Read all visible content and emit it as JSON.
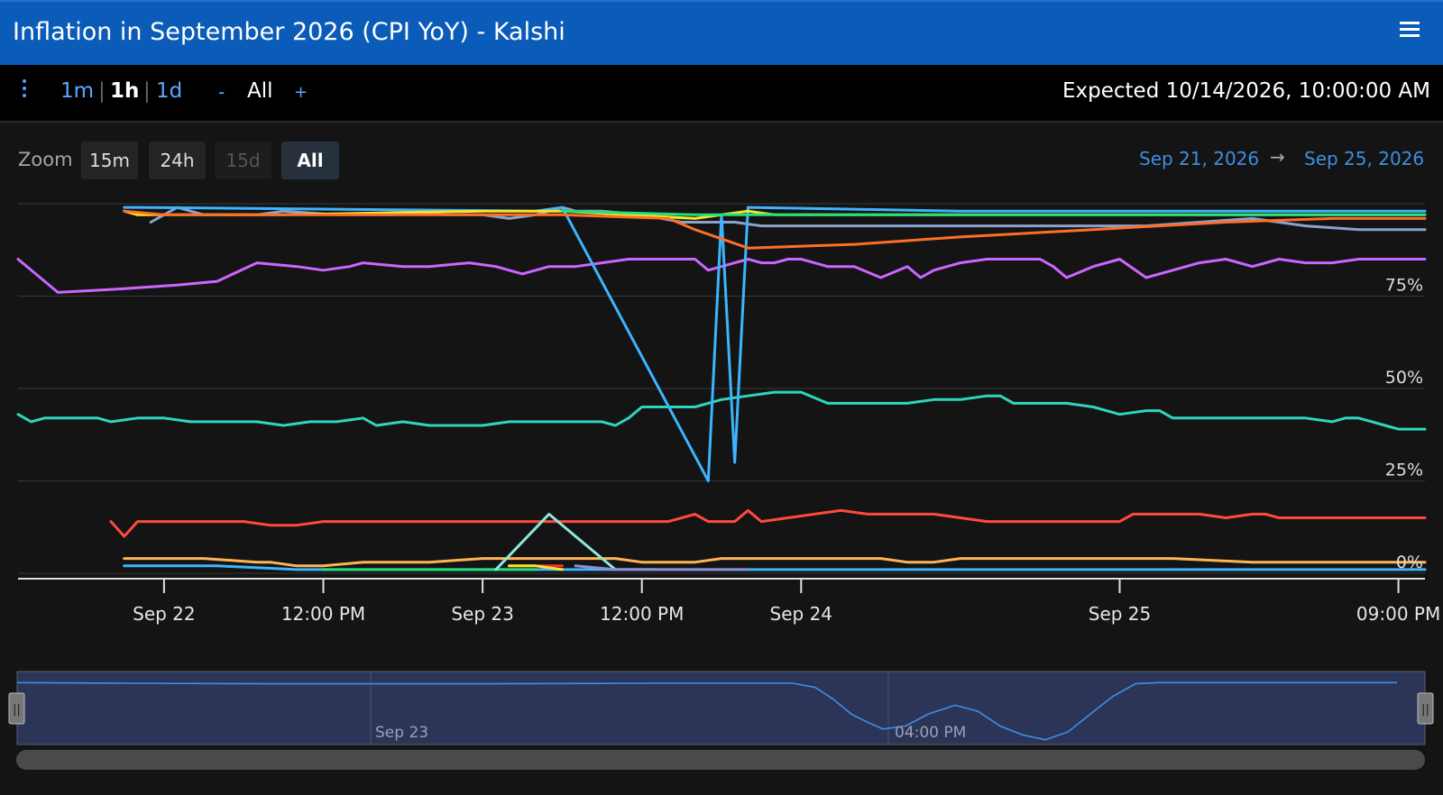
{
  "window": {
    "title": "Inflation in September 2026 (CPI YoY) - Kalshi"
  },
  "toolbar": {
    "resolutions": [
      "1m",
      "1h",
      "1d"
    ],
    "selected_resolution": "1h",
    "separator": "|",
    "zoom_out": "-",
    "range_label": "All",
    "zoom_in": "+",
    "expected": "Expected 10/14/2026, 10:00:00 AM"
  },
  "zoom": {
    "label": "Zoom",
    "buttons": [
      "15m",
      "24h",
      "15d",
      "All"
    ],
    "selected": "All",
    "disabled": [
      "15d"
    ]
  },
  "range": {
    "from": "Sep 21, 2026",
    "arrow": "→",
    "to": "Sep 25, 2026"
  },
  "colors": {
    "titlebar": "#0b5cb8",
    "background": "#141414",
    "accent": "#4aa3ff"
  },
  "chart_data": {
    "type": "line",
    "y_axis": {
      "min": 0,
      "max": 100,
      "ticks": [
        0,
        25,
        50,
        75
      ],
      "tick_labels": [
        "0%",
        "25%",
        "50%",
        "75%"
      ],
      "position": "right"
    },
    "x_axis": {
      "min_hour": -11,
      "max_hour": 95,
      "ticks": [
        {
          "h": 0,
          "label": "Sep 22"
        },
        {
          "h": 12,
          "label": "12:00 PM"
        },
        {
          "h": 24,
          "label": "Sep 23"
        },
        {
          "h": 36,
          "label": "12:00 PM"
        },
        {
          "h": 48,
          "label": "Sep 24"
        },
        {
          "h": 72,
          "label": "Sep 25"
        },
        {
          "h": 93,
          "label": "09:00 PM"
        }
      ]
    },
    "grid": true,
    "series": [
      {
        "color": "#cc66ff",
        "points": [
          [
            -11,
            85
          ],
          [
            -8,
            76
          ],
          [
            -3,
            77
          ],
          [
            1,
            78
          ],
          [
            4,
            79
          ],
          [
            7,
            84
          ],
          [
            10,
            83
          ],
          [
            12,
            82
          ],
          [
            14,
            83
          ],
          [
            15,
            84
          ],
          [
            18,
            83
          ],
          [
            20,
            83
          ],
          [
            23,
            84
          ],
          [
            25,
            83
          ],
          [
            27,
            81
          ],
          [
            29,
            83
          ],
          [
            31,
            83
          ],
          [
            33,
            84
          ],
          [
            35,
            85
          ],
          [
            37,
            85
          ],
          [
            40,
            85
          ],
          [
            41,
            82
          ],
          [
            43,
            84
          ],
          [
            44,
            85
          ],
          [
            45,
            84
          ],
          [
            46,
            84
          ],
          [
            47,
            85
          ],
          [
            48,
            85
          ],
          [
            50,
            83
          ],
          [
            52,
            83
          ],
          [
            54,
            80
          ],
          [
            56,
            83
          ],
          [
            57,
            80
          ],
          [
            58,
            82
          ],
          [
            60,
            84
          ],
          [
            62,
            85
          ],
          [
            64,
            85
          ],
          [
            66,
            85
          ],
          [
            67,
            83
          ],
          [
            68,
            80
          ],
          [
            70,
            83
          ],
          [
            72,
            85
          ],
          [
            74,
            80
          ],
          [
            76,
            82
          ],
          [
            78,
            84
          ],
          [
            80,
            85
          ],
          [
            82,
            83
          ],
          [
            84,
            85
          ],
          [
            86,
            84
          ],
          [
            88,
            84
          ],
          [
            90,
            85
          ],
          [
            95,
            85
          ]
        ]
      },
      {
        "color": "#2ed6c0",
        "points": [
          [
            -11,
            43
          ],
          [
            -10,
            41
          ],
          [
            -9,
            42
          ],
          [
            -5,
            42
          ],
          [
            -4,
            41
          ],
          [
            -2,
            42
          ],
          [
            0,
            42
          ],
          [
            2,
            41
          ],
          [
            4,
            41
          ],
          [
            6,
            41
          ],
          [
            7,
            41
          ],
          [
            9,
            40
          ],
          [
            11,
            41
          ],
          [
            13,
            41
          ],
          [
            15,
            42
          ],
          [
            16,
            40
          ],
          [
            18,
            41
          ],
          [
            20,
            40
          ],
          [
            22,
            40
          ],
          [
            24,
            40
          ],
          [
            26,
            41
          ],
          [
            28,
            41
          ],
          [
            30,
            41
          ],
          [
            33,
            41
          ],
          [
            34,
            40
          ],
          [
            35,
            42
          ],
          [
            36,
            45
          ],
          [
            38,
            45
          ],
          [
            39,
            45
          ],
          [
            40,
            45
          ],
          [
            42,
            47
          ],
          [
            44,
            48
          ],
          [
            46,
            49
          ],
          [
            48,
            49
          ],
          [
            50,
            46
          ],
          [
            52,
            46
          ],
          [
            54,
            46
          ],
          [
            56,
            46
          ],
          [
            58,
            47
          ],
          [
            60,
            47
          ],
          [
            62,
            48
          ],
          [
            63,
            48
          ],
          [
            64,
            46
          ],
          [
            66,
            46
          ],
          [
            68,
            46
          ],
          [
            70,
            45
          ],
          [
            72,
            43
          ],
          [
            74,
            44
          ],
          [
            75,
            44
          ],
          [
            76,
            42
          ],
          [
            78,
            42
          ],
          [
            80,
            42
          ],
          [
            82,
            42
          ],
          [
            84,
            42
          ],
          [
            86,
            42
          ],
          [
            88,
            41
          ],
          [
            89,
            42
          ],
          [
            90,
            42
          ],
          [
            92,
            40
          ],
          [
            93,
            39
          ],
          [
            95,
            39
          ]
        ]
      },
      {
        "color": "#ff4a3d",
        "points": [
          [
            -4,
            14
          ],
          [
            -3,
            10
          ],
          [
            -2,
            14
          ],
          [
            6,
            14
          ],
          [
            8,
            13
          ],
          [
            10,
            13
          ],
          [
            12,
            14
          ],
          [
            14,
            14
          ],
          [
            18,
            14
          ],
          [
            22,
            14
          ],
          [
            25,
            14
          ],
          [
            28,
            14
          ],
          [
            30,
            14
          ],
          [
            32,
            14
          ],
          [
            34,
            14
          ],
          [
            36,
            14
          ],
          [
            38,
            14
          ],
          [
            40,
            16
          ],
          [
            41,
            14
          ],
          [
            43,
            14
          ],
          [
            44,
            17
          ],
          [
            45,
            14
          ],
          [
            47,
            15
          ],
          [
            49,
            16
          ],
          [
            51,
            17
          ],
          [
            53,
            16
          ],
          [
            56,
            16
          ],
          [
            58,
            16
          ],
          [
            62,
            14
          ],
          [
            66,
            14
          ],
          [
            70,
            14
          ],
          [
            72,
            14
          ],
          [
            73,
            16
          ],
          [
            75,
            16
          ],
          [
            78,
            16
          ],
          [
            80,
            15
          ],
          [
            82,
            16
          ],
          [
            83,
            16
          ],
          [
            84,
            15
          ],
          [
            88,
            15
          ],
          [
            95,
            15
          ]
        ]
      },
      {
        "color": "#ffb454",
        "points": [
          [
            -3,
            4
          ],
          [
            3,
            4
          ],
          [
            7,
            3
          ],
          [
            8,
            3
          ],
          [
            10,
            2
          ],
          [
            12,
            2
          ],
          [
            15,
            3
          ],
          [
            20,
            3
          ],
          [
            24,
            4
          ],
          [
            30,
            4
          ],
          [
            34,
            4
          ],
          [
            36,
            3
          ],
          [
            38,
            3
          ],
          [
            40,
            3
          ],
          [
            42,
            4
          ],
          [
            46,
            4
          ],
          [
            50,
            4
          ],
          [
            54,
            4
          ],
          [
            56,
            3
          ],
          [
            58,
            3
          ],
          [
            60,
            4
          ],
          [
            64,
            4
          ],
          [
            70,
            4
          ],
          [
            76,
            4
          ],
          [
            82,
            3
          ],
          [
            88,
            3
          ],
          [
            95,
            3
          ]
        ]
      },
      {
        "color": "#3db4ff",
        "points": [
          [
            -3,
            2
          ],
          [
            4,
            2
          ],
          [
            10,
            1
          ],
          [
            24,
            1
          ],
          [
            34,
            1
          ],
          [
            38,
            1
          ],
          [
            44,
            1
          ],
          [
            50,
            1
          ],
          [
            60,
            1
          ],
          [
            70,
            1
          ],
          [
            80,
            1
          ],
          [
            95,
            1
          ]
        ]
      },
      {
        "color": "#22e07a",
        "points": [
          [
            12,
            1
          ],
          [
            24,
            1
          ],
          [
            28,
            1
          ]
        ]
      },
      {
        "color": "#ff2e2e",
        "points": [
          [
            26,
            2
          ],
          [
            30,
            2
          ]
        ]
      },
      {
        "color": "#f5e626",
        "points": [
          [
            26,
            2
          ],
          [
            28,
            2
          ],
          [
            30,
            1
          ]
        ]
      },
      {
        "color": "#8fe6dc",
        "points": [
          [
            25,
            1
          ],
          [
            29,
            16
          ],
          [
            34,
            1
          ],
          [
            37,
            1
          ]
        ]
      },
      {
        "color": "#8a8fd6",
        "points": [
          [
            31,
            2
          ],
          [
            34,
            1
          ],
          [
            40,
            1
          ],
          [
            44,
            1
          ]
        ]
      },
      {
        "color": "#8aa2d0",
        "points": [
          [
            -1,
            95
          ],
          [
            1,
            99
          ],
          [
            3,
            97
          ],
          [
            7,
            97
          ],
          [
            9,
            98
          ],
          [
            13,
            97
          ],
          [
            17,
            97
          ],
          [
            19,
            98
          ],
          [
            21,
            97
          ],
          [
            24,
            97
          ],
          [
            26,
            96
          ],
          [
            28,
            97
          ],
          [
            30,
            99
          ],
          [
            31,
            98
          ],
          [
            33,
            98
          ],
          [
            36,
            97
          ],
          [
            39,
            95
          ],
          [
            41,
            95
          ],
          [
            43,
            95
          ],
          [
            45,
            94
          ],
          [
            54,
            94
          ],
          [
            64,
            94
          ],
          [
            68,
            94
          ],
          [
            74,
            94
          ],
          [
            78,
            95
          ],
          [
            82,
            96
          ],
          [
            84,
            95
          ],
          [
            86,
            94
          ],
          [
            90,
            93
          ],
          [
            95,
            93
          ]
        ]
      },
      {
        "color": "#3db4ff",
        "points": [
          [
            -3,
            99
          ],
          [
            -2,
            99
          ],
          [
            28,
            98
          ],
          [
            30,
            99
          ],
          [
            41,
            25
          ],
          [
            42,
            97
          ],
          [
            43,
            30
          ],
          [
            44,
            99
          ],
          [
            60,
            98
          ],
          [
            80,
            98
          ],
          [
            95,
            98
          ]
        ]
      },
      {
        "color": "#f5e626",
        "points": [
          [
            -3,
            98
          ],
          [
            -2,
            97
          ],
          [
            9,
            97
          ],
          [
            24,
            98
          ],
          [
            26,
            98
          ],
          [
            30,
            98
          ],
          [
            40,
            96
          ],
          [
            44,
            98
          ],
          [
            46,
            97
          ],
          [
            50,
            97
          ],
          [
            95,
            97
          ]
        ]
      },
      {
        "color": "#22e07a",
        "points": [
          [
            30,
            98
          ],
          [
            40,
            97
          ],
          [
            44,
            97
          ],
          [
            60,
            97
          ],
          [
            95,
            97
          ]
        ]
      },
      {
        "color": "#ff6e26",
        "points": [
          [
            -3,
            98
          ],
          [
            0,
            97
          ],
          [
            8,
            97
          ],
          [
            20,
            97
          ],
          [
            24,
            97
          ],
          [
            28,
            97
          ],
          [
            30,
            97
          ],
          [
            38,
            96
          ],
          [
            40,
            93
          ],
          [
            44,
            88
          ],
          [
            52,
            89
          ],
          [
            60,
            91
          ],
          [
            70,
            93
          ],
          [
            80,
            95
          ],
          [
            88,
            96
          ],
          [
            95,
            96
          ]
        ]
      }
    ]
  },
  "navigator": {
    "labels": [
      "Sep 23",
      "04:00 PM"
    ],
    "handle_glyph": "||",
    "curve": [
      [
        0,
        98
      ],
      [
        120,
        97
      ],
      [
        280,
        96
      ],
      [
        520,
        96
      ],
      [
        700,
        97
      ],
      [
        805,
        97
      ],
      [
        860,
        97
      ],
      [
        885,
        90
      ],
      [
        905,
        70
      ],
      [
        925,
        45
      ],
      [
        945,
        30
      ],
      [
        960,
        20
      ],
      [
        985,
        25
      ],
      [
        1010,
        45
      ],
      [
        1040,
        60
      ],
      [
        1065,
        50
      ],
      [
        1090,
        25
      ],
      [
        1115,
        10
      ],
      [
        1140,
        2
      ],
      [
        1165,
        15
      ],
      [
        1190,
        45
      ],
      [
        1215,
        75
      ],
      [
        1240,
        96
      ],
      [
        1265,
        98
      ],
      [
        1400,
        98
      ],
      [
        1530,
        98
      ]
    ]
  }
}
